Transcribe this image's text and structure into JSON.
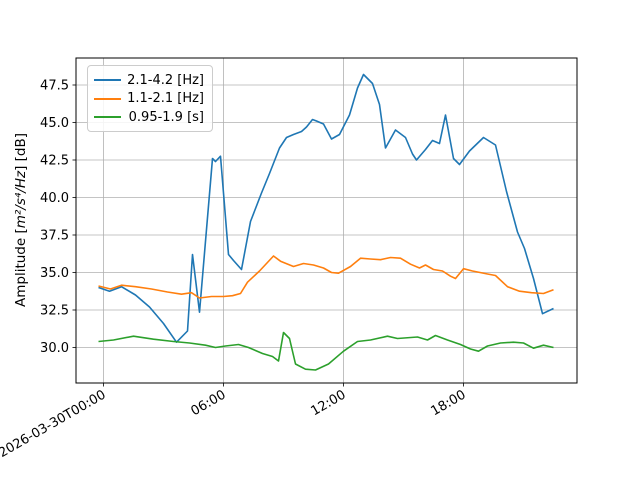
{
  "chart_data": {
    "type": "line",
    "title": "",
    "grid": true,
    "background_color": "#ffffff",
    "grid_color": "#b0b0b0",
    "legend_position": "upper left",
    "ylabel": {
      "prefix": "Amplitude [",
      "math": "m²/s⁴/Hz",
      "suffix": "] [dB]"
    },
    "x_axis": {
      "unit": "time of day (hours)",
      "xlim_hours": [
        -1.375,
        23.675
      ],
      "ticks": [
        {
          "t": 0,
          "label": "2026-03-30T00:00"
        },
        {
          "t": 6,
          "label": "06:00"
        },
        {
          "t": 12,
          "label": "12:00"
        },
        {
          "t": 18,
          "label": "18:00"
        }
      ]
    },
    "y_axis": {
      "ylim": [
        27.633,
        49.3
      ],
      "ticks": [
        {
          "v": 30.0,
          "label": "30.0"
        },
        {
          "v": 32.5,
          "label": "32.5"
        },
        {
          "v": 35.0,
          "label": "35.0"
        },
        {
          "v": 37.5,
          "label": "37.5"
        },
        {
          "v": 40.0,
          "label": "40.0"
        },
        {
          "v": 42.5,
          "label": "42.5"
        },
        {
          "v": 45.0,
          "label": "45.0"
        },
        {
          "v": 47.5,
          "label": "47.5"
        }
      ]
    },
    "series": [
      {
        "name": "2.1-4.2 [Hz]",
        "color": "#1f77b4",
        "points": [
          [
            -0.25,
            34.0
          ],
          [
            0.3,
            33.75
          ],
          [
            0.9,
            34.05
          ],
          [
            1.6,
            33.5
          ],
          [
            2.3,
            32.7
          ],
          [
            3.0,
            31.6
          ],
          [
            3.65,
            30.35
          ],
          [
            4.2,
            31.1
          ],
          [
            4.45,
            36.2
          ],
          [
            4.8,
            32.35
          ],
          [
            5.45,
            42.6
          ],
          [
            5.6,
            42.4
          ],
          [
            5.85,
            42.75
          ],
          [
            6.25,
            36.2
          ],
          [
            6.5,
            35.8
          ],
          [
            6.9,
            35.2
          ],
          [
            7.35,
            38.4
          ],
          [
            7.9,
            40.3
          ],
          [
            8.3,
            41.6
          ],
          [
            8.8,
            43.3
          ],
          [
            9.15,
            44.0
          ],
          [
            9.5,
            44.2
          ],
          [
            9.9,
            44.4
          ],
          [
            10.15,
            44.7
          ],
          [
            10.45,
            45.2
          ],
          [
            10.65,
            45.1
          ],
          [
            11.0,
            44.9
          ],
          [
            11.4,
            43.9
          ],
          [
            11.8,
            44.2
          ],
          [
            12.3,
            45.5
          ],
          [
            12.7,
            47.3
          ],
          [
            13.0,
            48.2
          ],
          [
            13.45,
            47.6
          ],
          [
            13.8,
            46.2
          ],
          [
            14.1,
            43.3
          ],
          [
            14.6,
            44.5
          ],
          [
            15.1,
            44.0
          ],
          [
            15.45,
            42.9
          ],
          [
            15.65,
            42.5
          ],
          [
            16.1,
            43.2
          ],
          [
            16.45,
            43.8
          ],
          [
            16.8,
            43.6
          ],
          [
            17.1,
            45.5
          ],
          [
            17.5,
            42.6
          ],
          [
            17.8,
            42.2
          ],
          [
            18.3,
            43.1
          ],
          [
            19.0,
            44.0
          ],
          [
            19.6,
            43.5
          ],
          [
            20.15,
            40.4
          ],
          [
            20.7,
            37.7
          ],
          [
            21.05,
            36.6
          ],
          [
            21.5,
            34.6
          ],
          [
            21.95,
            32.25
          ],
          [
            22.5,
            32.6
          ]
        ]
      },
      {
        "name": "1.1-2.1 [Hz]",
        "color": "#ff7f0e",
        "points": [
          [
            -0.25,
            34.1
          ],
          [
            0.35,
            33.9
          ],
          [
            0.9,
            34.15
          ],
          [
            1.6,
            34.05
          ],
          [
            2.4,
            33.9
          ],
          [
            3.2,
            33.7
          ],
          [
            3.9,
            33.55
          ],
          [
            4.4,
            33.65
          ],
          [
            4.8,
            33.3
          ],
          [
            5.4,
            33.4
          ],
          [
            6.0,
            33.4
          ],
          [
            6.45,
            33.45
          ],
          [
            6.85,
            33.6
          ],
          [
            7.2,
            34.35
          ],
          [
            7.8,
            35.1
          ],
          [
            8.5,
            36.1
          ],
          [
            8.85,
            35.75
          ],
          [
            9.5,
            35.4
          ],
          [
            10.0,
            35.6
          ],
          [
            10.5,
            35.5
          ],
          [
            11.0,
            35.3
          ],
          [
            11.4,
            35.0
          ],
          [
            11.75,
            34.95
          ],
          [
            12.35,
            35.4
          ],
          [
            12.85,
            35.95
          ],
          [
            13.35,
            35.9
          ],
          [
            13.85,
            35.85
          ],
          [
            14.35,
            36.0
          ],
          [
            14.85,
            35.95
          ],
          [
            15.35,
            35.55
          ],
          [
            15.8,
            35.3
          ],
          [
            16.1,
            35.5
          ],
          [
            16.5,
            35.2
          ],
          [
            16.95,
            35.1
          ],
          [
            17.35,
            34.75
          ],
          [
            17.6,
            34.6
          ],
          [
            18.0,
            35.25
          ],
          [
            18.45,
            35.1
          ],
          [
            19.2,
            34.9
          ],
          [
            19.6,
            34.8
          ],
          [
            20.2,
            34.05
          ],
          [
            20.8,
            33.75
          ],
          [
            21.4,
            33.65
          ],
          [
            22.0,
            33.6
          ],
          [
            22.5,
            33.85
          ]
        ]
      },
      {
        "name": "0.95-1.9 [s]",
        "color": "#2ca02c",
        "points": [
          [
            -0.25,
            30.4
          ],
          [
            0.5,
            30.5
          ],
          [
            1.5,
            30.75
          ],
          [
            2.5,
            30.55
          ],
          [
            3.5,
            30.4
          ],
          [
            4.3,
            30.3
          ],
          [
            5.1,
            30.15
          ],
          [
            5.6,
            30.0
          ],
          [
            6.1,
            30.1
          ],
          [
            6.75,
            30.2
          ],
          [
            7.25,
            30.0
          ],
          [
            7.95,
            29.6
          ],
          [
            8.45,
            29.4
          ],
          [
            8.75,
            29.1
          ],
          [
            9.0,
            31.0
          ],
          [
            9.3,
            30.6
          ],
          [
            9.6,
            28.9
          ],
          [
            10.1,
            28.55
          ],
          [
            10.6,
            28.5
          ],
          [
            11.25,
            28.9
          ],
          [
            12.0,
            29.75
          ],
          [
            12.7,
            30.4
          ],
          [
            13.35,
            30.5
          ],
          [
            14.2,
            30.75
          ],
          [
            14.7,
            30.6
          ],
          [
            15.7,
            30.7
          ],
          [
            16.2,
            30.5
          ],
          [
            16.6,
            30.8
          ],
          [
            17.2,
            30.5
          ],
          [
            17.85,
            30.2
          ],
          [
            18.35,
            29.9
          ],
          [
            18.75,
            29.75
          ],
          [
            19.2,
            30.1
          ],
          [
            19.85,
            30.3
          ],
          [
            20.5,
            30.35
          ],
          [
            21.0,
            30.3
          ],
          [
            21.5,
            29.95
          ],
          [
            22.0,
            30.15
          ],
          [
            22.5,
            30.0
          ]
        ]
      }
    ]
  }
}
